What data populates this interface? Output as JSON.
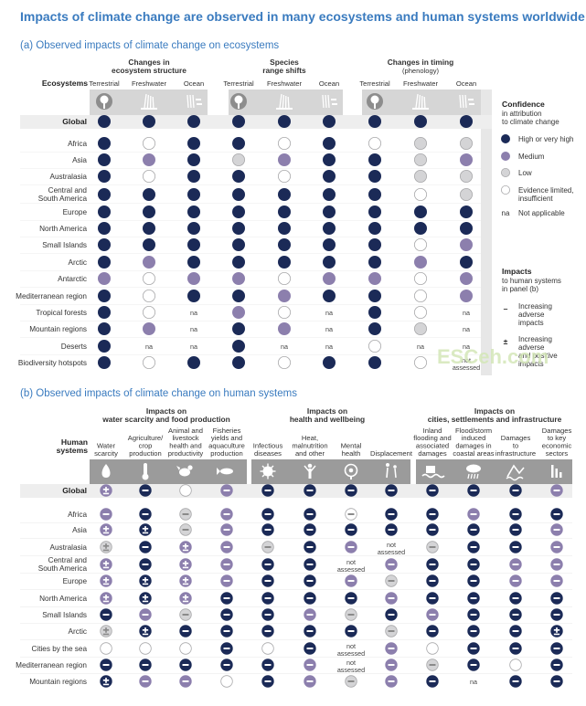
{
  "page": {
    "title": "Impacts of climate change are observed in many ecosystems and human systems worldwide",
    "watermark": "ESCeh.com"
  },
  "legend": {
    "confidence_title": "Confidence",
    "confidence_sub1": "in attribution",
    "confidence_sub2": "to climate change",
    "items": [
      {
        "code": "H",
        "label1": "High or very high",
        "label2": ""
      },
      {
        "code": "M",
        "label1": "Medium",
        "label2": ""
      },
      {
        "code": "L",
        "label1": "Low",
        "label2": ""
      },
      {
        "code": "E",
        "label1": "Evidence limited,",
        "label2": "insufficient"
      },
      {
        "code": "na",
        "label1": "Not applicable",
        "label2": ""
      }
    ],
    "impacts_title": "Impacts",
    "impacts_sub1": "to human systems",
    "impacts_sub2": "in panel (b)",
    "adverse": [
      "Increasing",
      "adverse",
      "impacts"
    ],
    "mixed": [
      "Increasing",
      "adverse",
      "and positive",
      "impacts"
    ],
    "minus_symbol": "–",
    "plusminus_symbol": "±"
  },
  "colors": {
    "high": "#1b2a57",
    "medium": "#8c7fad",
    "low": "#d4d4d6",
    "evidence_limited": "#ffffff",
    "header_band": "#d6d6d6",
    "icon_tab": "#9b9b9b",
    "title": "#3a7bbf"
  },
  "chart_data": [
    {
      "type": "table",
      "title": "(a) Observed impacts of climate change on ecosystems",
      "header_label": "Ecosystems",
      "groups": [
        {
          "name": "Changes in ecosystem structure",
          "line1": "Changes in",
          "line2": "ecosystem structure",
          "sub": ""
        },
        {
          "name": "Species range shifts",
          "line1": "Species",
          "line2": "range shifts",
          "sub": ""
        },
        {
          "name": "Changes in timing",
          "line1": "Changes in timing",
          "line2": "",
          "sub": "(phenology)"
        }
      ],
      "columns": [
        "Terrestrial",
        "Freshwater",
        "Ocean",
        "Terrestrial",
        "Freshwater",
        "Ocean",
        "Terrestrial",
        "Freshwater",
        "Ocean"
      ],
      "column_icons": [
        "tree-icon",
        "reed-icon",
        "coral-icon",
        "tree-icon",
        "reed-icon",
        "coral-icon",
        "tree-icon",
        "reed-icon",
        "coral-icon"
      ],
      "rows": [
        {
          "label": "Global",
          "values": [
            "H",
            "H",
            "H",
            "H",
            "H",
            "H",
            "H",
            "H",
            "H"
          ]
        },
        {
          "label": "Africa",
          "values": [
            "H",
            "E",
            "H",
            "H",
            "E",
            "H",
            "E",
            "L",
            "L"
          ]
        },
        {
          "label": "Asia",
          "values": [
            "H",
            "M",
            "H",
            "L",
            "M",
            "H",
            "H",
            "L",
            "M"
          ]
        },
        {
          "label": "Australasia",
          "values": [
            "H",
            "E",
            "H",
            "H",
            "E",
            "H",
            "H",
            "L",
            "L"
          ]
        },
        {
          "label": "Central and South America",
          "values": [
            "H",
            "H",
            "H",
            "H",
            "H",
            "H",
            "H",
            "E",
            "L"
          ]
        },
        {
          "label": "Europe",
          "values": [
            "H",
            "H",
            "H",
            "H",
            "H",
            "H",
            "H",
            "H",
            "H"
          ]
        },
        {
          "label": "North America",
          "values": [
            "H",
            "H",
            "H",
            "H",
            "H",
            "H",
            "H",
            "H",
            "H"
          ]
        },
        {
          "label": "Small Islands",
          "values": [
            "H",
            "H",
            "H",
            "H",
            "H",
            "H",
            "H",
            "E",
            "M"
          ]
        },
        {
          "label": "Arctic",
          "values": [
            "H",
            "M",
            "H",
            "H",
            "H",
            "H",
            "H",
            "M",
            "H"
          ]
        },
        {
          "label": "Antarctic",
          "values": [
            "M",
            "E",
            "M",
            "M",
            "E",
            "M",
            "M",
            "E",
            "M"
          ]
        },
        {
          "label": "Mediterranean region",
          "values": [
            "H",
            "E",
            "H",
            "H",
            "M",
            "H",
            "H",
            "E",
            "M"
          ]
        },
        {
          "label": "Tropical forests",
          "values": [
            "H",
            "E",
            "na",
            "M",
            "E",
            "na",
            "H",
            "E",
            "na"
          ]
        },
        {
          "label": "Mountain regions",
          "values": [
            "H",
            "M",
            "na",
            "H",
            "M",
            "na",
            "H",
            "L",
            "na"
          ]
        },
        {
          "label": "Deserts",
          "values": [
            "H",
            "na",
            "na",
            "H",
            "na",
            "na",
            "E",
            "na",
            "na"
          ]
        },
        {
          "label": "Biodiversity hotspots",
          "values": [
            "H",
            "E",
            "H",
            "H",
            "E",
            "H",
            "H",
            "E",
            "not assessed"
          ]
        }
      ]
    },
    {
      "type": "table",
      "title": "(b) Observed impacts of climate change on human systems",
      "header_label": "Human systems",
      "groups": [
        {
          "name": "Impacts on water scarcity and food production",
          "line1": "Impacts on",
          "line2": "water scarcity and food production"
        },
        {
          "name": "Impacts on health and wellbeing",
          "line1": "Impacts on",
          "line2": "health and wellbeing"
        },
        {
          "name": "Impacts on cities, settlements and infrastructure",
          "line1": "Impacts on",
          "line2": "cities, settlements and infrastructure"
        }
      ],
      "columns": [
        "Water scarcity",
        "Agriculture/ crop production",
        "Animal and livestock health and productivity",
        "Fisheries yields and aquaculture production",
        "Infectious diseases",
        "Heat, malnutrition and other",
        "Mental health",
        "Displacement",
        "Inland flooding and associated damages",
        "Flood/storm induced damages in coastal areas",
        "Damages to infrastructure",
        "Damages to key economic sectors"
      ],
      "column_lines": [
        [
          "Water",
          "scarcity"
        ],
        [
          "Agriculture/",
          "crop",
          "production"
        ],
        [
          "Animal and",
          "livestock",
          "health and",
          "productivity"
        ],
        [
          "Fisheries",
          "yields and",
          "aquaculture",
          "production"
        ],
        [
          "Infectious",
          "diseases"
        ],
        [
          "Heat,",
          "malnutrition",
          "and other"
        ],
        [
          "Mental",
          "health"
        ],
        [
          "Displacement"
        ],
        [
          "Inland",
          "flooding and",
          "associated",
          "damages"
        ],
        [
          "Flood/storm",
          "induced",
          "damages in",
          "coastal areas"
        ],
        [
          "Damages",
          "to",
          "infrastructure"
        ],
        [
          "Damages",
          "to key",
          "economic",
          "sectors"
        ]
      ],
      "column_icons": [
        "water-drop-icon",
        "thermometer-icon",
        "chicken-icon",
        "fish-icon",
        "virus-icon",
        "heat-person-icon",
        "mental-health-icon",
        "displacement-icon",
        "inland-flood-icon",
        "storm-icon",
        "infrastructure-icon",
        "economy-icon"
      ],
      "rows": [
        {
          "label": "Global",
          "values": [
            "M±",
            "H-",
            "E",
            "M-",
            "H-",
            "H-",
            "H-",
            "H-",
            "H-",
            "H-",
            "H-",
            "M-"
          ]
        },
        {
          "label": "Africa",
          "values": [
            "M-",
            "H-",
            "L-",
            "M-",
            "H-",
            "H-",
            "E-",
            "H-",
            "H-",
            "M-",
            "H-",
            "H-"
          ]
        },
        {
          "label": "Asia",
          "values": [
            "M±",
            "H±",
            "L-",
            "M-",
            "H-",
            "H-",
            "H-",
            "H-",
            "H-",
            "H-",
            "H-",
            "M-"
          ]
        },
        {
          "label": "Australasia",
          "values": [
            "L±",
            "H-",
            "M±",
            "M-",
            "L-",
            "H-",
            "M-",
            "not assessed",
            "L-",
            "H-",
            "H-",
            "M-"
          ]
        },
        {
          "label": "Central and South America",
          "values": [
            "M±",
            "H-",
            "M±",
            "M-",
            "H-",
            "H-",
            "not assessed",
            "M-",
            "H-",
            "H-",
            "M-",
            "M-"
          ]
        },
        {
          "label": "Europe",
          "values": [
            "M±",
            "H±",
            "M±",
            "M-",
            "H-",
            "H-",
            "M-",
            "L-",
            "H-",
            "H-",
            "M-",
            "M-"
          ]
        },
        {
          "label": "North America",
          "values": [
            "M±",
            "H±",
            "M±",
            "H-",
            "H-",
            "H-",
            "H-",
            "M-",
            "H-",
            "H-",
            "H-",
            "H-"
          ]
        },
        {
          "label": "Small Islands",
          "values": [
            "H-",
            "M-",
            "L-",
            "H-",
            "H-",
            "M-",
            "L-",
            "H-",
            "M-",
            "H-",
            "H-",
            "H-"
          ]
        },
        {
          "label": "Arctic",
          "values": [
            "L±",
            "H±",
            "H-",
            "H-",
            "H-",
            "H-",
            "H-",
            "L-",
            "H-",
            "H-",
            "H-",
            "H±"
          ]
        },
        {
          "label": "Cities by the sea",
          "values": [
            "E",
            "E",
            "E",
            "H-",
            "E",
            "H-",
            "not assessed",
            "M-",
            "E",
            "H-",
            "H-",
            "H-"
          ]
        },
        {
          "label": "Mediterranean region",
          "values": [
            "H-",
            "H-",
            "H-",
            "H-",
            "H-",
            "M-",
            "not assessed",
            "M-",
            "L-",
            "H-",
            "E",
            "H-"
          ]
        },
        {
          "label": "Mountain regions",
          "values": [
            "H±",
            "M-",
            "M-",
            "E",
            "H-",
            "M-",
            "L-",
            "M-",
            "H-",
            "na",
            "H-",
            "H-"
          ]
        }
      ]
    }
  ]
}
